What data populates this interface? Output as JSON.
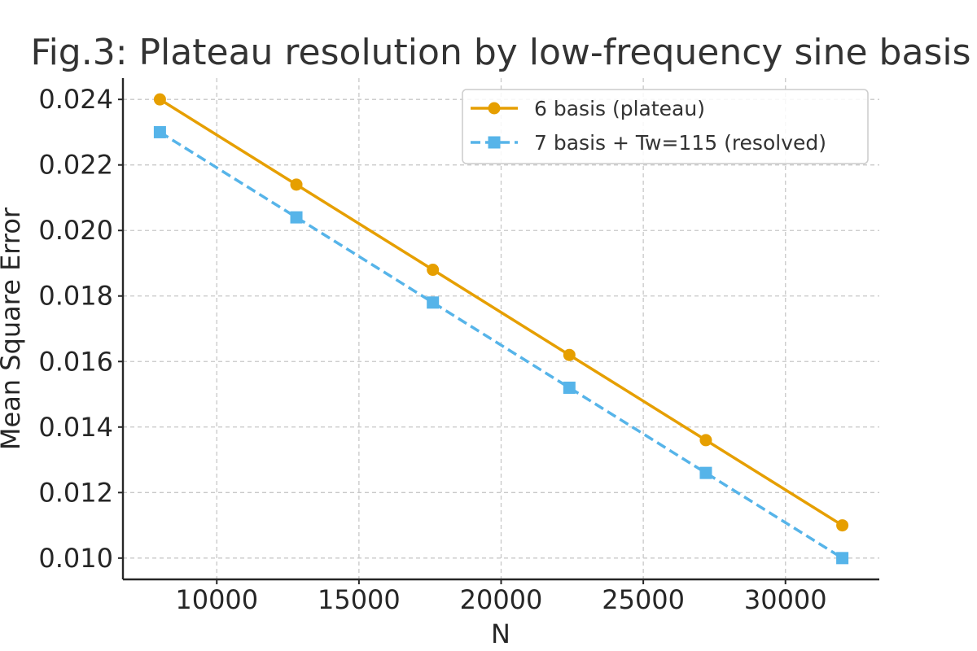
{
  "chart_data": {
    "type": "line",
    "title": "Fig.3: Plateau resolution by low-frequency sine basis",
    "xlabel": "N",
    "ylabel": "Mean Square Error",
    "xlim": [
      6700,
      33300
    ],
    "ylim": [
      0.00935,
      0.02465
    ],
    "xticks": [
      10000,
      15000,
      20000,
      25000,
      30000
    ],
    "xtick_labels": [
      "10000",
      "15000",
      "20000",
      "25000",
      "30000"
    ],
    "yticks": [
      0.01,
      0.012,
      0.014,
      0.016,
      0.018,
      0.02,
      0.022,
      0.024
    ],
    "ytick_labels": [
      "0.010",
      "0.012",
      "0.014",
      "0.016",
      "0.018",
      "0.020",
      "0.022",
      "0.024"
    ],
    "grid": true,
    "legend_position": "top-right",
    "x": [
      8000,
      12800,
      17600,
      22400,
      27200,
      32000
    ],
    "series": [
      {
        "name": "6 basis (plateau)",
        "values": [
          0.024,
          0.0214,
          0.0188,
          0.0162,
          0.0136,
          0.011
        ],
        "color": "#E69F00",
        "marker": "circle",
        "line_style": "solid"
      },
      {
        "name": "7 basis + Tw=115 (resolved)",
        "values": [
          0.023,
          0.0204,
          0.0178,
          0.0152,
          0.0126,
          0.01
        ],
        "color": "#56B4E9",
        "marker": "square",
        "line_style": "dashed"
      }
    ]
  }
}
